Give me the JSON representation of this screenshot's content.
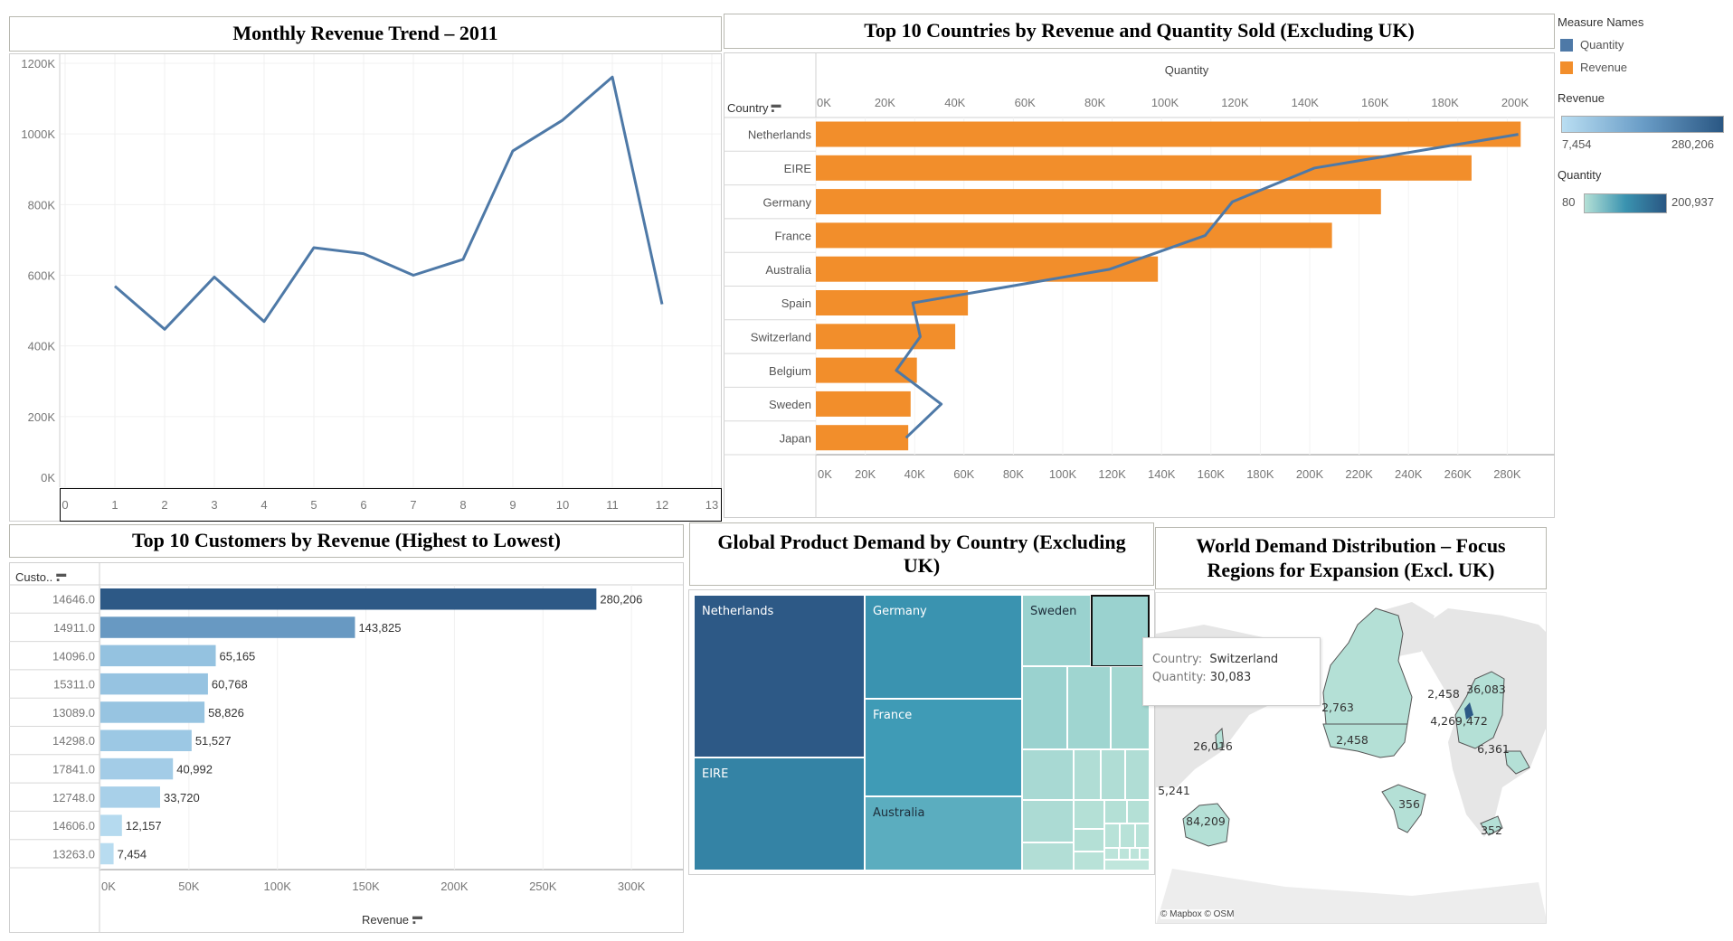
{
  "panels": {
    "monthly": {
      "title": "Monthly Revenue Trend – 2011"
    },
    "countries": {
      "title": "Top 10 Countries by Revenue and Quantity Sold (Excluding UK)",
      "row_header": "Country",
      "top_axis_title": "Quantity"
    },
    "customers": {
      "title": "Top 10 Customers by Revenue (Highest to Lowest)",
      "row_header": "Custo..",
      "axis_title": "Revenue"
    },
    "treemap": {
      "title": "Global Product Demand by Country (Excluding UK)"
    },
    "map": {
      "title": "World Demand Distribution – Focus Regions for Expansion (Excl. UK)",
      "credit": "© Mapbox  © OSM",
      "labels": [
        "2,763",
        "2,458",
        "26,016",
        "5,241",
        "84,209",
        "356",
        "352",
        "2,458",
        "36,083",
        "4,269,472",
        "6,361"
      ],
      "tooltip": {
        "country_key": "Country:",
        "country_value": "Switzerland",
        "quantity_key": "Quantity:",
        "quantity_value": "30,083"
      }
    }
  },
  "legend": {
    "measure_names_title": "Measure Names",
    "items": [
      {
        "label": "Quantity",
        "color": "#4e79a7"
      },
      {
        "label": "Revenue",
        "color": "#f28e2b"
      }
    ],
    "revenue_title": "Revenue",
    "revenue_min": "7,454",
    "revenue_max": "280,206",
    "quantity_title": "Quantity",
    "quantity_min": "80",
    "quantity_max": "200,937"
  },
  "chart_data": [
    {
      "type": "line",
      "title": "Monthly Revenue Trend – 2011",
      "x": [
        1,
        2,
        3,
        4,
        5,
        6,
        7,
        8,
        9,
        10,
        11,
        12
      ],
      "values": [
        569,
        447,
        595,
        469,
        678,
        661,
        600,
        645,
        952,
        1039,
        1161,
        518
      ],
      "y_unit": "K",
      "xlim": [
        0,
        13
      ],
      "ylim": [
        0,
        1200
      ],
      "x_ticks": [
        "0",
        "1",
        "2",
        "3",
        "4",
        "5",
        "6",
        "7",
        "8",
        "9",
        "10",
        "11",
        "12",
        "13"
      ],
      "y_ticks": [
        "0K",
        "200K",
        "400K",
        "600K",
        "800K",
        "1000K",
        "1200K"
      ],
      "color": "#4e79a7",
      "grid": true
    },
    {
      "type": "bar",
      "title": "Top 10 Countries by Revenue and Quantity Sold (Excluding UK)",
      "orientation": "horizontal",
      "categories": [
        "Netherlands",
        "EIRE",
        "Germany",
        "France",
        "Australia",
        "Spain",
        "Switzerland",
        "Belgium",
        "Sweden",
        "Japan"
      ],
      "series": [
        {
          "name": "Revenue",
          "type": "bar",
          "color": "#f28e2b",
          "values": [
            285446,
            265545,
            228867,
            209024,
            138521,
            61577,
            56444,
            40911,
            38378,
            37416
          ]
        },
        {
          "name": "Quantity",
          "type": "line",
          "color": "#4e79a7",
          "values": [
            200937,
            142637,
            119263,
            111472,
            84209,
            27951,
            30083,
            23237,
            36083,
            26016
          ]
        }
      ],
      "revenue_axis": {
        "range": [
          0,
          280000
        ],
        "ticks": [
          "0K",
          "20K",
          "40K",
          "60K",
          "80K",
          "100K",
          "120K",
          "140K",
          "160K",
          "180K",
          "200K",
          "220K",
          "240K",
          "260K",
          "280K"
        ]
      },
      "quantity_axis": {
        "title": "Quantity",
        "range": [
          0,
          200000
        ],
        "ticks": [
          "0K",
          "20K",
          "40K",
          "60K",
          "80K",
          "100K",
          "120K",
          "140K",
          "160K",
          "180K",
          "200K"
        ]
      },
      "legend": "right"
    },
    {
      "type": "bar",
      "title": "Top 10 Customers by Revenue (Highest to Lowest)",
      "orientation": "horizontal",
      "categories": [
        "14646.0",
        "14911.0",
        "14096.0",
        "15311.0",
        "13089.0",
        "14298.0",
        "17841.0",
        "12748.0",
        "14606.0",
        "13263.0"
      ],
      "values": [
        280206,
        143825,
        65165,
        60768,
        58826,
        51527,
        40992,
        33720,
        12157,
        7454
      ],
      "labels": [
        "280,206",
        "143,825",
        "65,165",
        "60,768",
        "58,826",
        "51,527",
        "40,992",
        "33,720",
        "12,157",
        "7,454"
      ],
      "colors": [
        "#2d5986",
        "#6899c2",
        "#94c2e0",
        "#96c3e1",
        "#97c4e1",
        "#9cc8e4",
        "#a3cce7",
        "#a8d0e9",
        "#b5daef",
        "#b8dcf0"
      ],
      "xlabel": "Revenue",
      "xlim": [
        0,
        330000
      ],
      "x_ticks": [
        "0K",
        "50K",
        "100K",
        "150K",
        "200K",
        "250K",
        "300K"
      ]
    },
    {
      "type": "treemap",
      "title": "Global Product Demand by Country (Excluding UK)",
      "labels": [
        "Netherlands",
        "EIRE",
        "Germany",
        "France",
        "Australia",
        "Sweden"
      ],
      "colors": [
        "#2d5986",
        "#3483a5",
        "#3a93b0",
        "#3f9bb6",
        "#5badbf",
        "#9ad2cf"
      ],
      "highlighted": {
        "label": "Switzerland",
        "value": 30083
      }
    }
  ]
}
